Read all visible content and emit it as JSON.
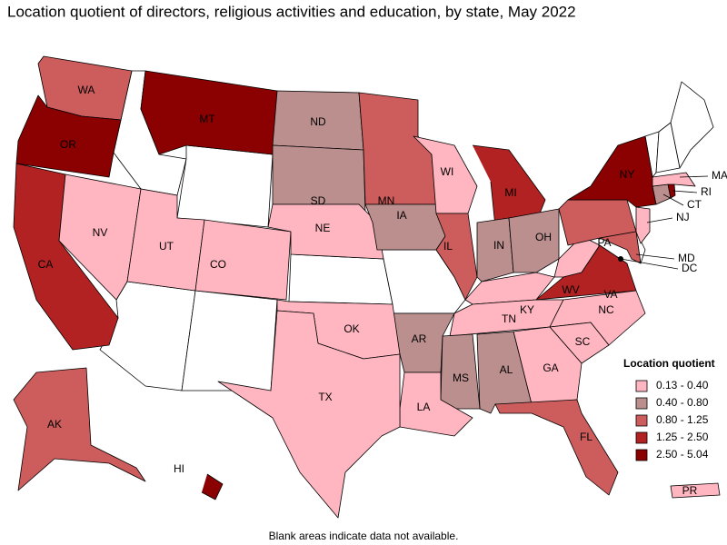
{
  "title": "Location quotient of directors, religious activities and education, by state, May 2022",
  "footnote": "Blank areas indicate data not available.",
  "legend": {
    "title": "Location quotient",
    "items": [
      {
        "label": "0.13 - 0.40",
        "color": "#ffb6c1"
      },
      {
        "label": "0.40 - 0.80",
        "color": "#bc8f8f"
      },
      {
        "label": "0.80 - 1.25",
        "color": "#cd5c5c"
      },
      {
        "label": "1.25 - 2.50",
        "color": "#b22222"
      },
      {
        "label": "2.50 - 5.04",
        "color": "#8b0000"
      }
    ]
  },
  "states": [
    {
      "label": "WA",
      "color": "#cd5c5c"
    },
    {
      "label": "OR",
      "color": "#8b0000"
    },
    {
      "label": "CA",
      "color": "#b22222"
    },
    {
      "label": "NV",
      "color": "#ffb6c1"
    },
    {
      "label": "UT",
      "color": "#ffb6c1"
    },
    {
      "label": "CO",
      "color": "#ffb6c1"
    },
    {
      "label": "MT",
      "color": "#8b0000"
    },
    {
      "label": "ND",
      "color": "#bc8f8f"
    },
    {
      "label": "SD",
      "color": "#bc8f8f"
    },
    {
      "label": "NE",
      "color": "#ffb6c1"
    },
    {
      "label": "MN",
      "color": "#cd5c5c"
    },
    {
      "label": "IA",
      "color": "#bc8f8f"
    },
    {
      "label": "WI",
      "color": "#ffb6c1"
    },
    {
      "label": "IL",
      "color": "#cd5c5c"
    },
    {
      "label": "MI",
      "color": "#b22222"
    },
    {
      "label": "IN",
      "color": "#bc8f8f"
    },
    {
      "label": "OH",
      "color": "#bc8f8f"
    },
    {
      "label": "KY",
      "color": "#ffb6c1"
    },
    {
      "label": "TN",
      "color": "#ffb6c1"
    },
    {
      "label": "WV",
      "color": "#ffb6c1"
    },
    {
      "label": "VA",
      "color": "#b22222"
    },
    {
      "label": "PA",
      "color": "#cd5c5c"
    },
    {
      "label": "NY",
      "color": "#8b0000"
    },
    {
      "label": "NC",
      "color": "#ffb6c1"
    },
    {
      "label": "SC",
      "color": "#ffb6c1"
    },
    {
      "label": "GA",
      "color": "#ffb6c1"
    },
    {
      "label": "AL",
      "color": "#bc8f8f"
    },
    {
      "label": "MS",
      "color": "#bc8f8f"
    },
    {
      "label": "AR",
      "color": "#bc8f8f"
    },
    {
      "label": "LA",
      "color": "#ffb6c1"
    },
    {
      "label": "OK",
      "color": "#ffb6c1"
    },
    {
      "label": "TX",
      "color": "#ffb6c1"
    },
    {
      "label": "FL",
      "color": "#cd5c5c"
    },
    {
      "label": "AK",
      "color": "#cd5c5c"
    },
    {
      "label": "HI",
      "color": "#8b0000"
    },
    {
      "label": "PR",
      "color": "#ffb6c1"
    },
    {
      "label": "NJ",
      "color": "#ffb6c1"
    },
    {
      "label": "CT",
      "color": "#bc8f8f"
    },
    {
      "label": "RI",
      "color": "#8b0000"
    },
    {
      "label": "MA",
      "color": "#ffb6c1"
    },
    {
      "label": "MD",
      "color": "#cd5c5c"
    },
    {
      "label": "DC",
      "color": "#000000"
    }
  ]
}
